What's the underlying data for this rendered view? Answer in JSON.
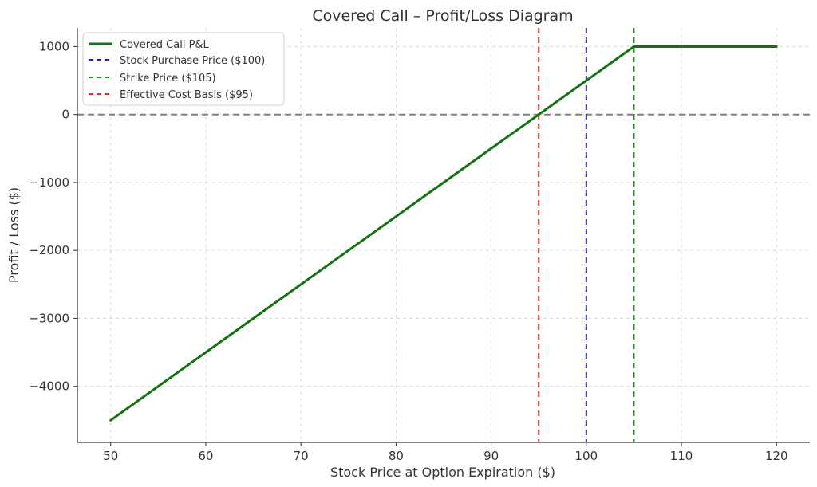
{
  "chart_data": {
    "type": "line",
    "title": "Covered Call – Profit/Loss Diagram",
    "xlabel": "Stock Price at Option Expiration ($)",
    "ylabel": "Profit / Loss ($)",
    "xlim": [
      46.5,
      123.5
    ],
    "ylim": [
      -4825,
      1275
    ],
    "x_ticks": [
      50,
      60,
      70,
      80,
      90,
      100,
      110,
      120
    ],
    "x_tick_labels": [
      "50",
      "60",
      "70",
      "80",
      "90",
      "100",
      "110",
      "120"
    ],
    "y_ticks": [
      1000,
      0,
      -1000,
      -2000,
      -3000,
      -4000
    ],
    "y_tick_labels": [
      "1000",
      "0",
      "−1000",
      "−2000",
      "−3000",
      "−4000"
    ],
    "grid": true,
    "legend_position": "top-left",
    "series": [
      {
        "name": "Covered Call P&L",
        "kind": "line",
        "style": "solid",
        "color": "#137313",
        "x": [
          50,
          105,
          120
        ],
        "y": [
          -4500,
          1000,
          1000
        ]
      },
      {
        "name": "Stock Purchase Price ($100)",
        "kind": "vline",
        "style": "dashed",
        "color": "#2222bb",
        "x": 100
      },
      {
        "name": "Strike Price ($105)",
        "kind": "vline",
        "style": "dashed",
        "color": "#1e8c1e",
        "x": 105
      },
      {
        "name": "Effective Cost Basis ($95)",
        "kind": "vline",
        "style": "dashed",
        "color": "#dd2a2a",
        "x": 95
      }
    ],
    "reference_lines": [
      {
        "kind": "hline",
        "y": 0,
        "style": "dashed",
        "color": "#808080"
      }
    ]
  }
}
